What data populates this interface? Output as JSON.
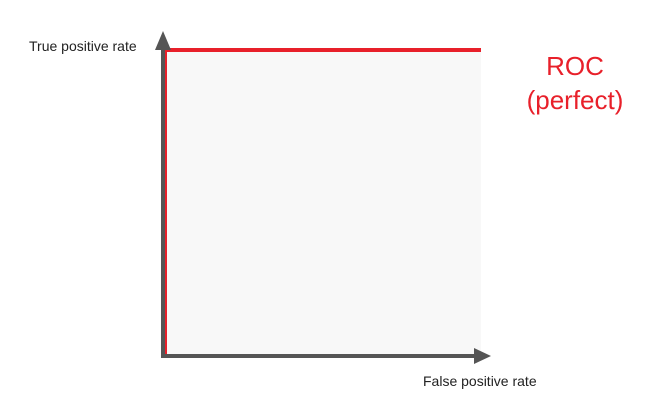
{
  "chart_data": {
    "type": "line",
    "ylabel": "True positive rate",
    "xlabel": "False positive rate",
    "xlim": [
      0,
      1
    ],
    "ylim": [
      0,
      1
    ],
    "grid": false,
    "annotation": {
      "line1": "ROC",
      "line2": "(perfect)"
    },
    "series": [
      {
        "x": [
          0,
          0,
          1
        ],
        "y": [
          0,
          1,
          1
        ],
        "color": "#e8202a"
      }
    ],
    "colors": {
      "axis": "#555555",
      "area_fill": "#f8f8f8"
    }
  }
}
